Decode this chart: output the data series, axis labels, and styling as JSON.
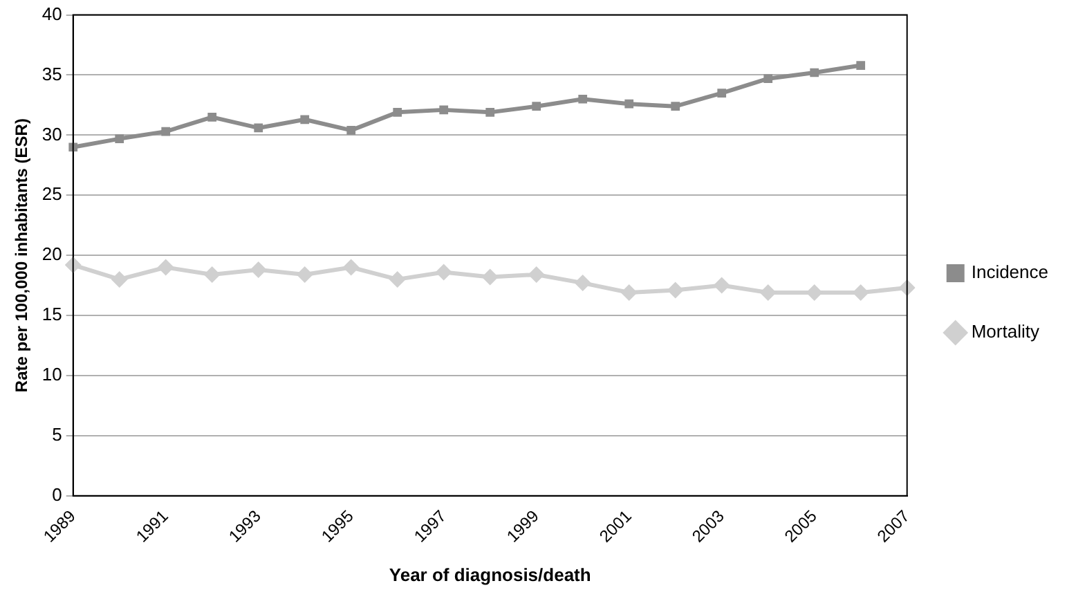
{
  "chart_data": {
    "type": "line",
    "xlabel": "Year of diagnosis/death",
    "ylabel": "Rate per 100,000 inhabitants (ESR)",
    "categories": [
      "1989",
      null,
      "1991",
      null,
      "1993",
      null,
      "1995",
      null,
      "1997",
      null,
      "1999",
      null,
      "2001",
      null,
      "2003",
      null,
      "2005",
      null,
      "2007"
    ],
    "series": [
      {
        "name": "Incidence",
        "color": "#8c8c8c",
        "marker": "square",
        "values": [
          29.0,
          29.7,
          30.3,
          31.5,
          30.6,
          31.3,
          30.4,
          31.9,
          32.1,
          31.9,
          32.4,
          33.0,
          32.6,
          32.4,
          33.5,
          34.7,
          35.2,
          35.8,
          null
        ]
      },
      {
        "name": "Mortality",
        "color": "#d0d0d0",
        "marker": "diamond",
        "values": [
          19.2,
          18.0,
          19.0,
          18.4,
          18.8,
          18.4,
          19.0,
          18.0,
          18.6,
          18.2,
          18.4,
          17.7,
          16.9,
          17.1,
          17.5,
          16.9,
          16.9,
          16.9,
          17.3
        ]
      }
    ],
    "ylim": [
      0,
      40
    ],
    "yticks": [
      0,
      5,
      10,
      15,
      20,
      25,
      30,
      35,
      40
    ],
    "grid": "y",
    "legend": "right"
  }
}
